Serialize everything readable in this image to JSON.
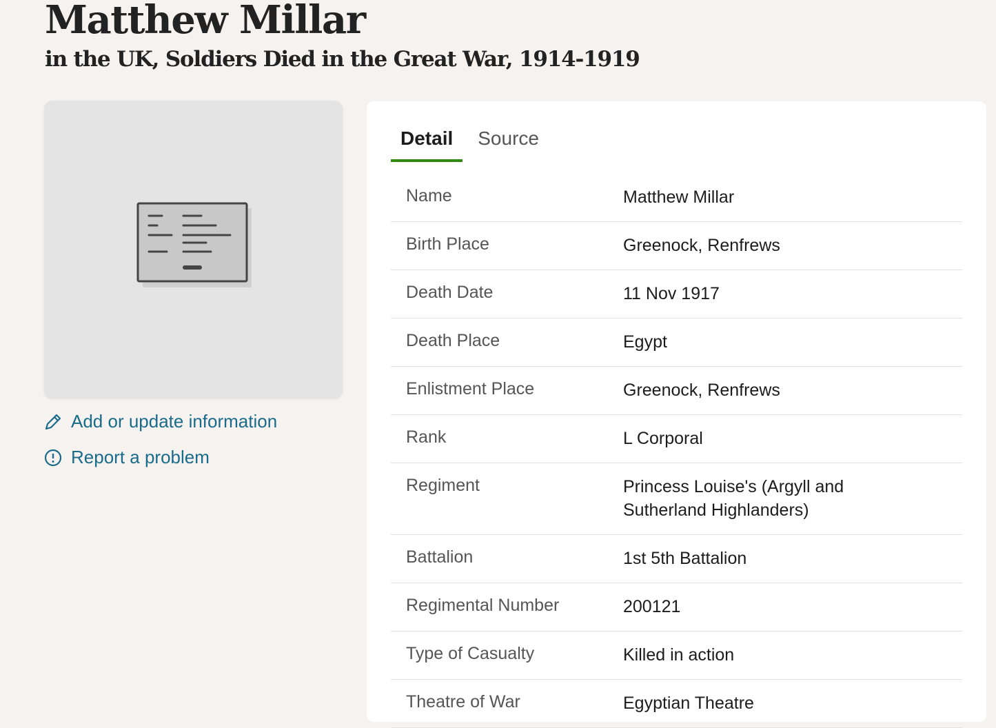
{
  "header": {
    "title": "Matthew Millar",
    "subtitle": "in the UK, Soldiers Died in the Great War, 1914-1919"
  },
  "sidebar": {
    "image_icon": "record-card-icon",
    "links": [
      {
        "label": "Add or update information",
        "icon": "pencil-icon"
      },
      {
        "label": "Report a problem",
        "icon": "alert-circle-icon"
      }
    ]
  },
  "tabs": [
    {
      "label": "Detail",
      "active": true
    },
    {
      "label": "Source",
      "active": false
    }
  ],
  "colors": {
    "accent": "#2e8b0e",
    "link": "#1a6a8a",
    "background": "#f5f2ef"
  },
  "details": [
    {
      "label": "Name",
      "value": "Matthew Millar"
    },
    {
      "label": "Birth Place",
      "value": "Greenock, Renfrews"
    },
    {
      "label": "Death Date",
      "value": "11 Nov 1917"
    },
    {
      "label": "Death Place",
      "value": "Egypt"
    },
    {
      "label": "Enlistment Place",
      "value": "Greenock, Renfrews"
    },
    {
      "label": "Rank",
      "value": "L Corporal"
    },
    {
      "label": "Regiment",
      "value": "Princess Louise's (Argyll and Sutherland Highlanders)"
    },
    {
      "label": "Battalion",
      "value": "1st 5th Battalion"
    },
    {
      "label": "Regimental Number",
      "value": "200121"
    },
    {
      "label": "Type of Casualty",
      "value": "Killed in action"
    },
    {
      "label": "Theatre of War",
      "value": "Egyptian Theatre"
    }
  ]
}
